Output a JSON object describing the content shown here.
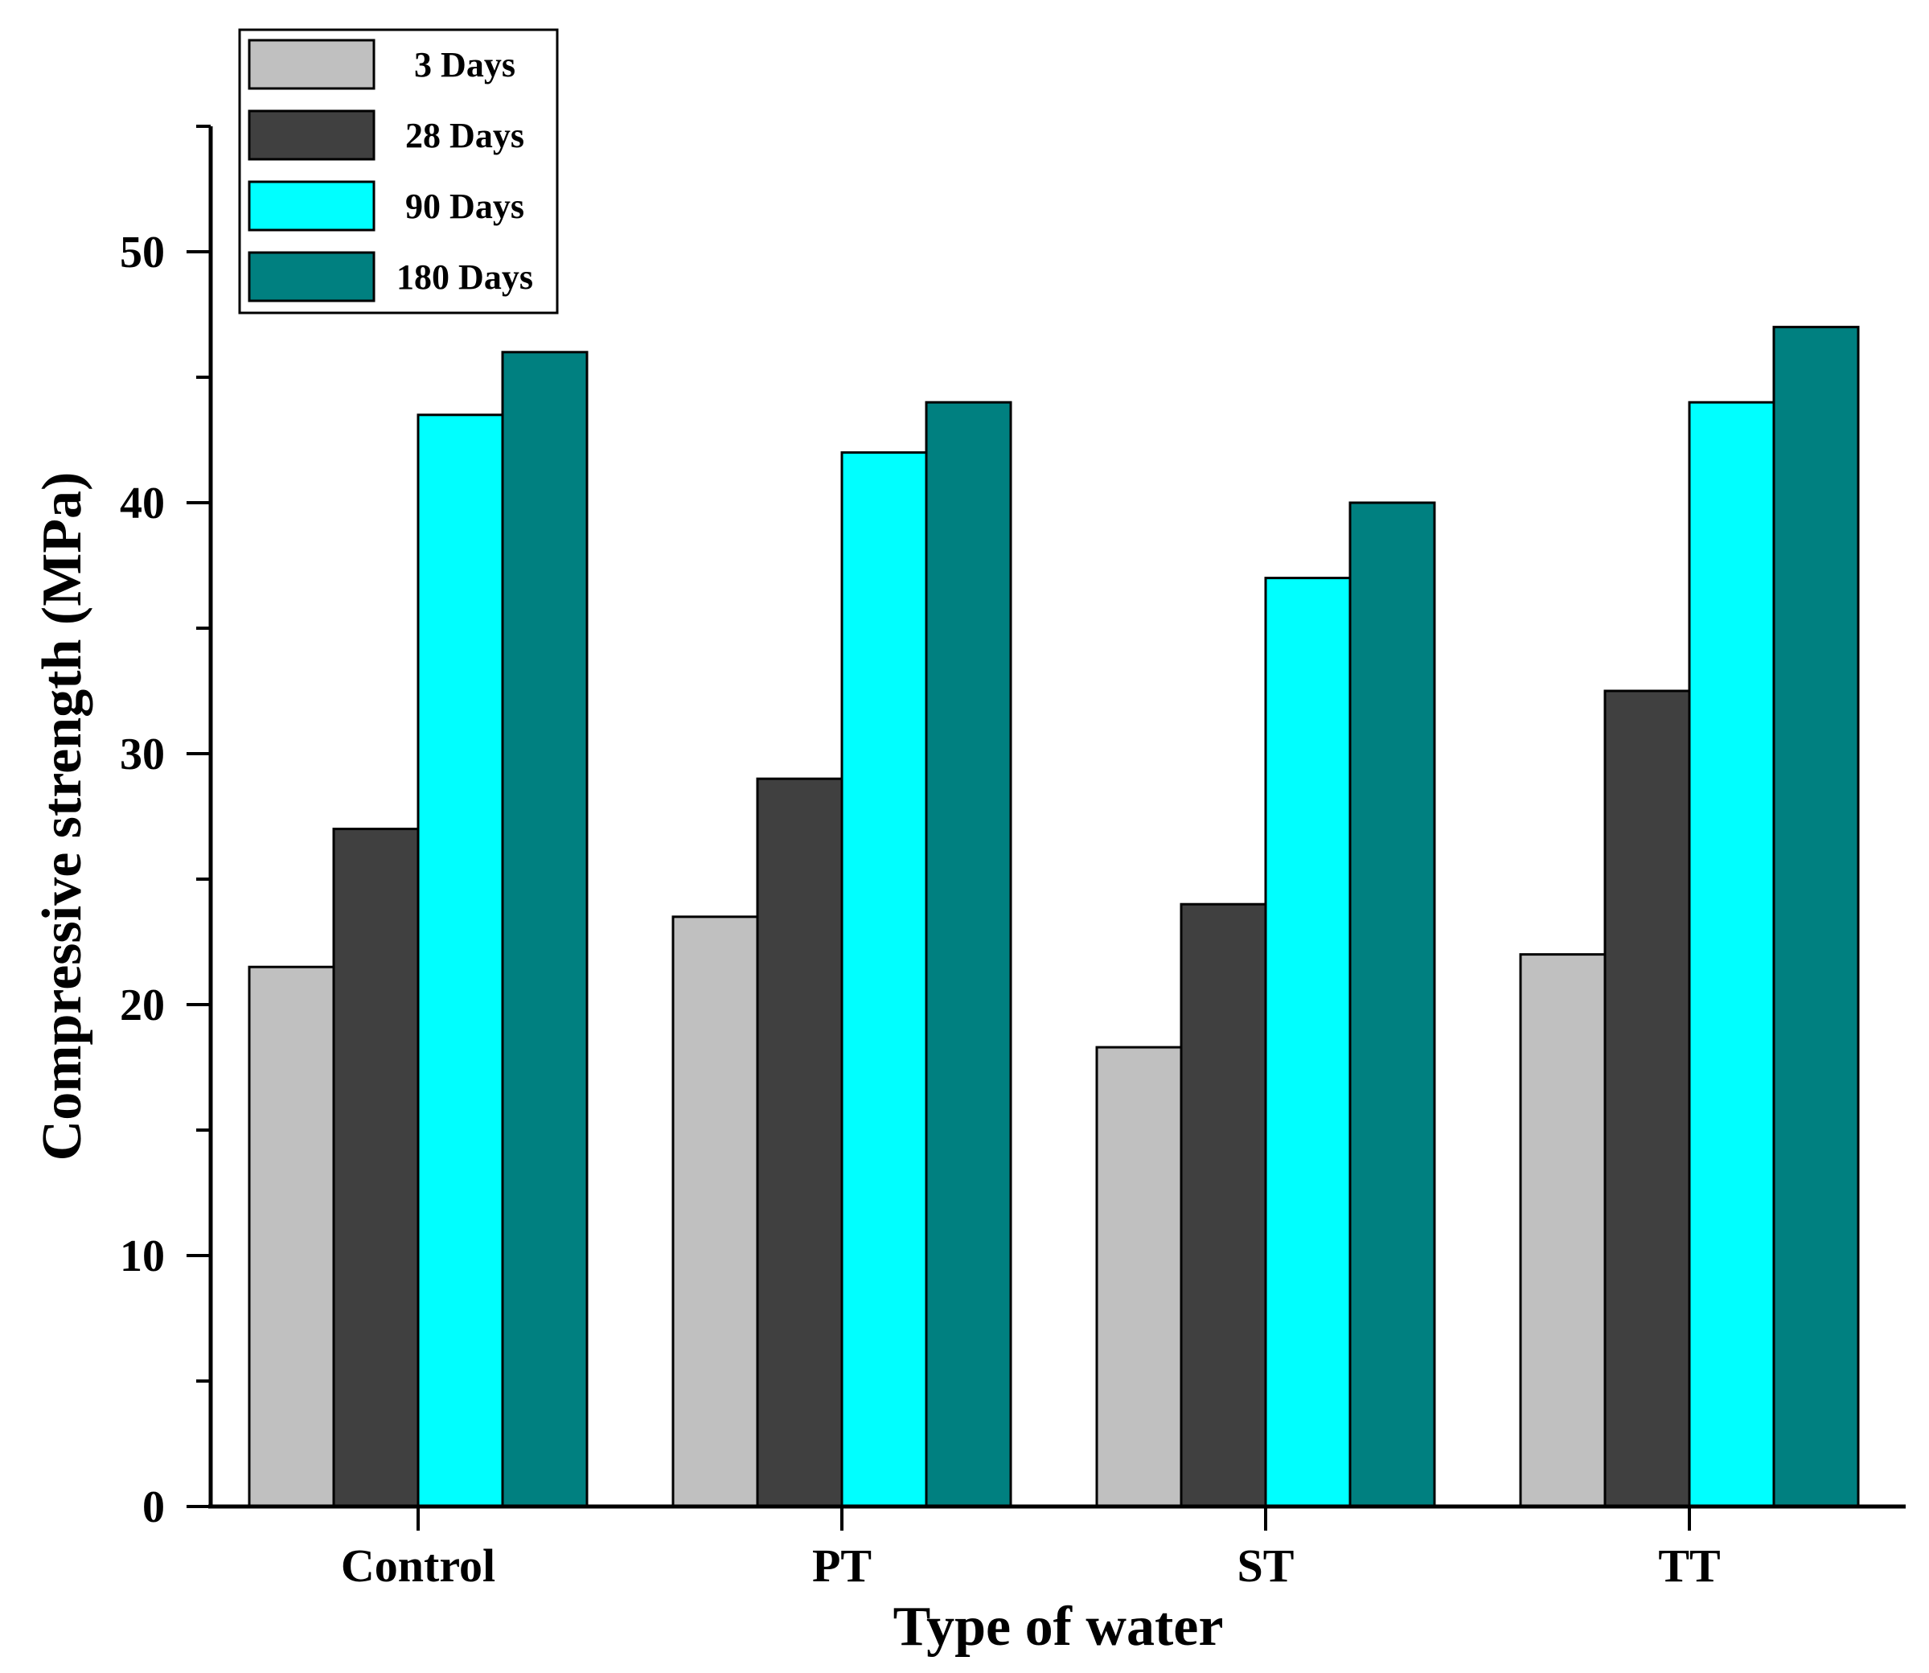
{
  "chart_data": {
    "type": "bar",
    "title": "",
    "xlabel": "Type of water",
    "ylabel": "Compressive strength (MPa)",
    "ylim": [
      0,
      55
    ],
    "yticks": [
      0,
      10,
      20,
      30,
      40,
      50
    ],
    "categories": [
      "Control",
      "PT",
      "ST",
      "TT"
    ],
    "series": [
      {
        "name": "3 Days",
        "color": "#c0c0c0",
        "values": [
          21.5,
          23.5,
          18.3,
          22.0
        ]
      },
      {
        "name": "28 Days",
        "color": "#404040",
        "values": [
          27.0,
          29.0,
          24.0,
          32.5
        ]
      },
      {
        "name": "90 Days",
        "color": "#00ffff",
        "values": [
          43.5,
          42.0,
          37.0,
          44.0
        ]
      },
      {
        "name": "180 Days",
        "color": "#008080",
        "values": [
          46.0,
          44.0,
          40.0,
          47.0
        ]
      }
    ],
    "legend_position": "top-left",
    "grid": false
  }
}
